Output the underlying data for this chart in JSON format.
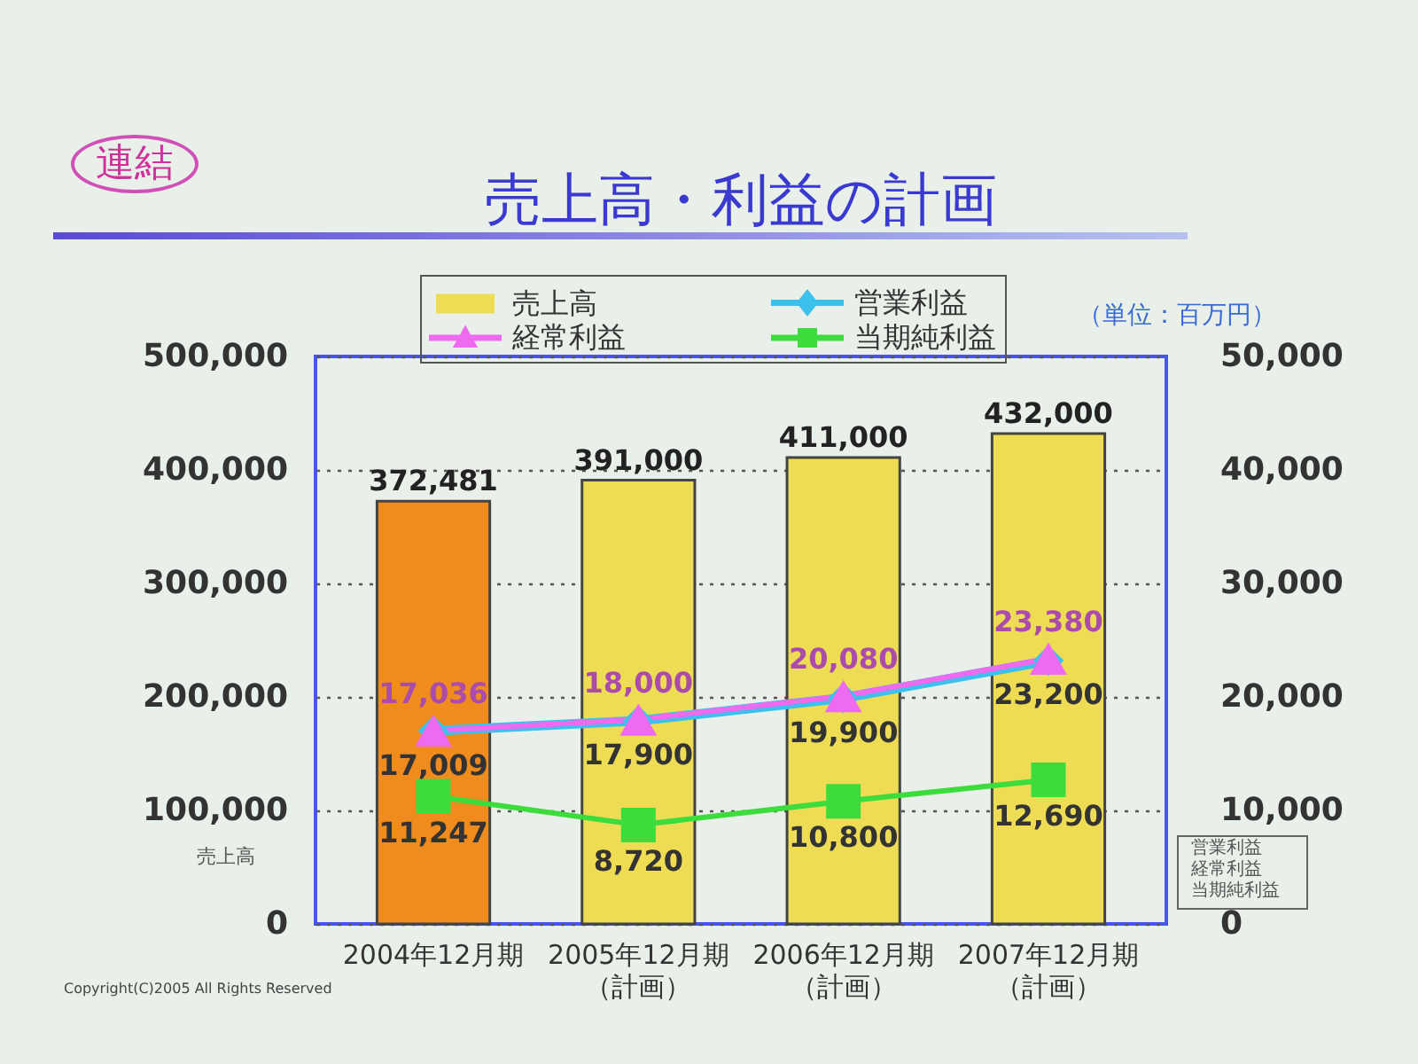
{
  "chart_data": {
    "type": "bar",
    "title": "売上高・利益の計画",
    "ylabel": "売上高",
    "categories": [
      "2004年12月期",
      "2005年12月期（計画）",
      "2006年12月期（計画）",
      "2007年12月期（計画）"
    ],
    "series": [
      {
        "name": "売上高",
        "color": "#eedc55",
        "colors": [
          "#f08c1e",
          "#eedc55",
          "#eedc55",
          "#eedc55"
        ],
        "values": [
          372481,
          391000,
          411000,
          432000
        ],
        "value_labels": [
          "372,481",
          "391,000",
          "411,000",
          "432,000"
        ]
      },
      {
        "name": "営業利益",
        "type": "line",
        "axis": "y2",
        "color": "#3cc0ec",
        "marker": "diamond",
        "values": [
          17009,
          17900,
          19900,
          23200
        ],
        "value_labels": [
          "17,009",
          "17,900",
          "19,900",
          "23,200"
        ]
      },
      {
        "name": "経常利益",
        "type": "line",
        "axis": "y2",
        "color": "#ee6aee",
        "marker": "triangle",
        "values": [
          17036,
          18000,
          20080,
          23380
        ],
        "value_labels": [
          "17,036",
          "18,000",
          "20,080",
          "23,380"
        ]
      },
      {
        "name": "当期純利益",
        "type": "line",
        "axis": "y2",
        "color": "#3cdc3c",
        "marker": "square",
        "values": [
          11247,
          8720,
          10800,
          12690
        ],
        "value_labels": [
          "11,247",
          "8,720",
          "10,800",
          "12,690"
        ]
      }
    ],
    "ylim": [
      0,
      500000
    ],
    "yticks": [
      0,
      {
        "value": 100000,
        "label": "100,000"
      },
      {
        "value": 200000,
        "label": "200,000"
      },
      {
        "value": 300000,
        "label": "300,000"
      },
      {
        "value": 400000,
        "label": "400,000"
      },
      {
        "value": 500000,
        "label": "500,000"
      }
    ],
    "y2lim": [
      0,
      50000
    ],
    "y2ticks": [
      0,
      {
        "value": 10000,
        "label": "10,000"
      },
      {
        "value": 20000,
        "label": "20,000"
      },
      {
        "value": 30000,
        "label": "30,000"
      },
      {
        "value": 40000,
        "label": "40,000"
      },
      {
        "value": 50000,
        "label": "50,000"
      }
    ],
    "grid": "y",
    "legend": "top",
    "annotations": [
      "連結",
      "（単位：百万円）",
      "Copyright(C)2005 All Rights Reserved",
      "営業利益",
      "経常利益",
      "当期純利益"
    ]
  }
}
